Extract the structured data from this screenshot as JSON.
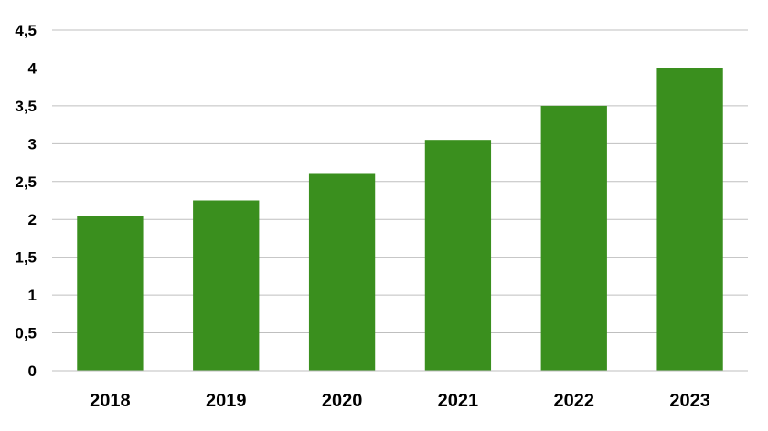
{
  "chart_data": {
    "type": "bar",
    "categories": [
      "2018",
      "2019",
      "2020",
      "2021",
      "2022",
      "2023"
    ],
    "values": [
      2.05,
      2.25,
      2.6,
      3.05,
      3.5,
      4.0
    ],
    "title": "",
    "xlabel": "",
    "ylabel": "",
    "ylim": [
      0,
      4.5
    ],
    "yticks": [
      0,
      0.5,
      1,
      1.5,
      2,
      2.5,
      3,
      3.5,
      4,
      4.5
    ],
    "ytick_labels": [
      "0",
      "0,5",
      "1",
      "1,5",
      "2",
      "2,5",
      "3",
      "3,5",
      "4",
      "4,5"
    ],
    "grid": true,
    "legend": "none",
    "bar_color": "#3a8f1e",
    "grid_color": "#bfbfbf"
  }
}
